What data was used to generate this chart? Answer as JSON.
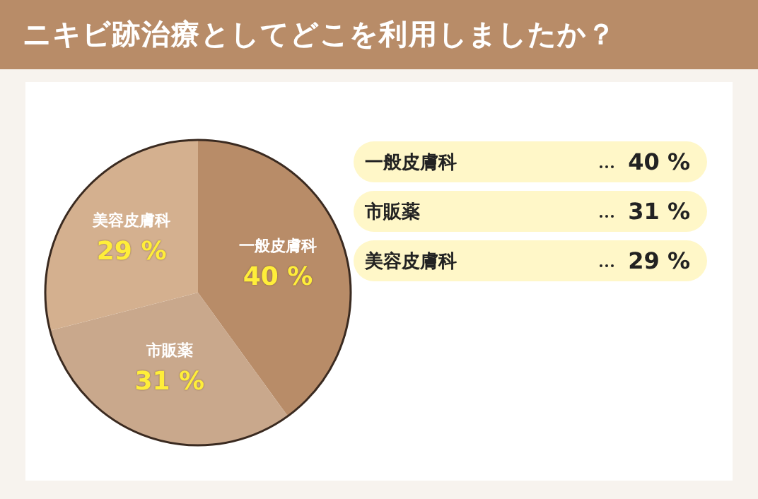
{
  "chart_data": {
    "type": "pie",
    "title": "ニキビ跡治療としてどこを利用しましたか？",
    "categories": [
      "一般皮膚科",
      "市販薬",
      "美容皮膚科"
    ],
    "values": [
      40,
      31,
      29
    ],
    "colors": [
      "#b88c68",
      "#c9a88c",
      "#d4b08f"
    ],
    "value_labels": [
      "40 %",
      "31 %",
      "29 %"
    ]
  }
}
